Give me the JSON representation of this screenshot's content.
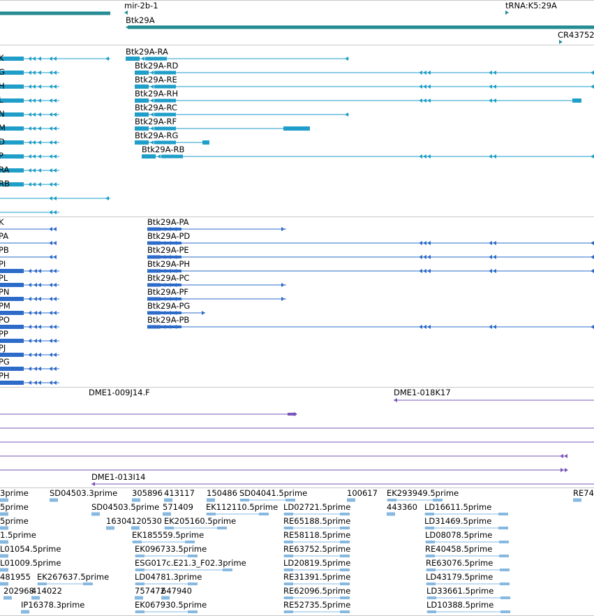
{
  "colors": {
    "gene": "#268c93",
    "transcript": "#1e9ec8",
    "protein": "#2d6bc9",
    "clone": "#7a56b8",
    "est": "#87b8e0",
    "separator": "#c8c8c8"
  },
  "tracks": {
    "genes": {
      "features": [
        {
          "id": "g-mir",
          "label": "mir-2b-1"
        },
        {
          "id": "g-trna",
          "label": "tRNA:K5:29A"
        },
        {
          "id": "g-btk",
          "label": "Btk29A"
        },
        {
          "id": "g-cr",
          "label": "CR43752"
        }
      ]
    },
    "transcripts": {
      "left_labels": [
        "K",
        "G",
        "H",
        "L",
        "N",
        "M",
        "D",
        "P",
        "RA",
        "RB"
      ],
      "features": [
        {
          "id": "t-ra",
          "label": "Btk29A-RA"
        },
        {
          "id": "t-rd",
          "label": "Btk29A-RD"
        },
        {
          "id": "t-re",
          "label": "Btk29A-RE"
        },
        {
          "id": "t-rh",
          "label": "Btk29A-RH"
        },
        {
          "id": "t-rc",
          "label": "Btk29A-RC"
        },
        {
          "id": "t-rf",
          "label": "Btk29A-RF"
        },
        {
          "id": "t-rg",
          "label": "Btk29A-RG"
        },
        {
          "id": "t-rb",
          "label": "Btk29A-RB"
        }
      ]
    },
    "proteins": {
      "left_labels": [
        "K",
        "PA",
        "PB",
        "PI",
        "PL",
        "PN",
        "PM",
        "PO",
        "PP",
        "PJ",
        "PG",
        "PH"
      ],
      "features": [
        {
          "id": "p-pa",
          "label": "Btk29A-PA"
        },
        {
          "id": "p-pd",
          "label": "Btk29A-PD"
        },
        {
          "id": "p-pe",
          "label": "Btk29A-PE"
        },
        {
          "id": "p-ph",
          "label": "Btk29A-PH"
        },
        {
          "id": "p-pc",
          "label": "Btk29A-PC"
        },
        {
          "id": "p-pf",
          "label": "Btk29A-PF"
        },
        {
          "id": "p-pg",
          "label": "Btk29A-PG"
        },
        {
          "id": "p-pb",
          "label": "Btk29A-PB"
        }
      ]
    },
    "clones": {
      "features": [
        {
          "id": "c-009",
          "label": "DME1-009J14.F"
        },
        {
          "id": "c-018",
          "label": "DME1-018K17"
        },
        {
          "id": "c-013",
          "label": "DME1-013I14"
        }
      ]
    },
    "ests": {
      "labels": [
        "3prime",
        "SD04503.3prime",
        "305896",
        "413117",
        "150486",
        "SD04041.5prime",
        "100617",
        "EK293949.5prime",
        "RE74",
        "5prime",
        "SD04503.5prime",
        "571409",
        "EK112110.5prime",
        "LD02721.5prime",
        "443360",
        "LD16611.5prime",
        "5prime",
        "16304",
        "120530",
        "EK205160.5prime",
        "RE65188.5prime",
        "LD31469.5prime",
        "1.5prime",
        "EK185559.5prime",
        "RE58118.5prime",
        "LD08078.5prime",
        "L01054.5prime",
        "EK096733.5prime",
        "RE63752.5prime",
        "RE40458.5prime",
        "L01009.5prime",
        "ESG017c.E21.3_F02.3prime",
        "LD20819.5prime",
        "RE63076.5prime",
        "481955",
        "EK267637.5prime",
        "LD04781.3prime",
        "RE31391.5prime",
        "LD43179.5prime",
        "202968",
        "414022",
        "757472",
        "647940",
        "RE62096.5prime",
        "LD33661.5prime",
        "IP16378.3prime",
        "EK067930.5prime",
        "RE52735.5prime",
        "LD10388.5prime"
      ]
    }
  }
}
